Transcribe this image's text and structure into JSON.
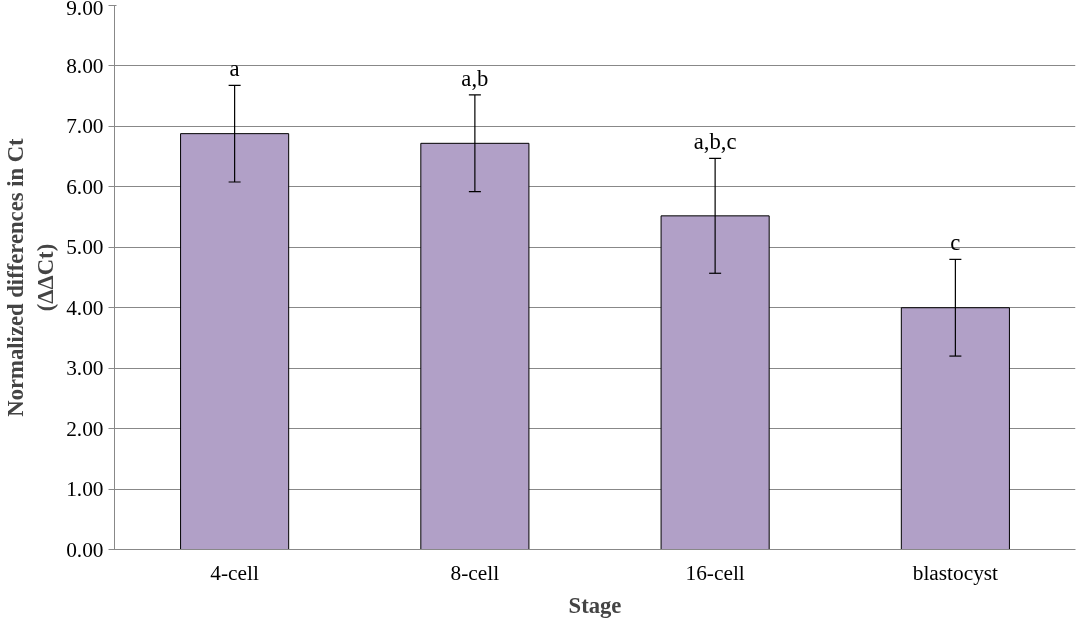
{
  "chart_data": {
    "type": "bar",
    "xlabel": "Stage",
    "ylabel": "Normalized differences in Ct\n(ΔΔCt)",
    "categories": [
      "4-cell",
      "8-cell",
      "16-cell",
      "blastocyst"
    ],
    "values": [
      6.88,
      6.72,
      5.52,
      4.0
    ],
    "errors": [
      0.8,
      0.8,
      0.95,
      0.8
    ],
    "color": "#b1a0c7",
    "ylim": [
      0,
      9
    ],
    "yticks": [
      {
        "value": 0,
        "label": "0.00"
      },
      {
        "value": 1,
        "label": "1.00"
      },
      {
        "value": 2,
        "label": "2.00"
      },
      {
        "value": 3,
        "label": "3.00"
      },
      {
        "value": 4,
        "label": "4.00"
      },
      {
        "value": 5,
        "label": "5.00"
      },
      {
        "value": 6,
        "label": "6.00"
      },
      {
        "value": 7,
        "label": "7.00"
      },
      {
        "value": 8,
        "label": "8.00"
      },
      {
        "value": 9,
        "label": "9.00"
      }
    ],
    "grid": "y",
    "annotations": [
      {
        "text": "a",
        "x": "4-cell",
        "y": 7.68
      },
      {
        "text": "a,b",
        "x": "8-cell",
        "y": 7.52
      },
      {
        "text": "a,b,c",
        "x": "16-cell",
        "y": 6.47
      },
      {
        "text": "c",
        "x": "blastocyst",
        "y": 4.8
      }
    ]
  }
}
